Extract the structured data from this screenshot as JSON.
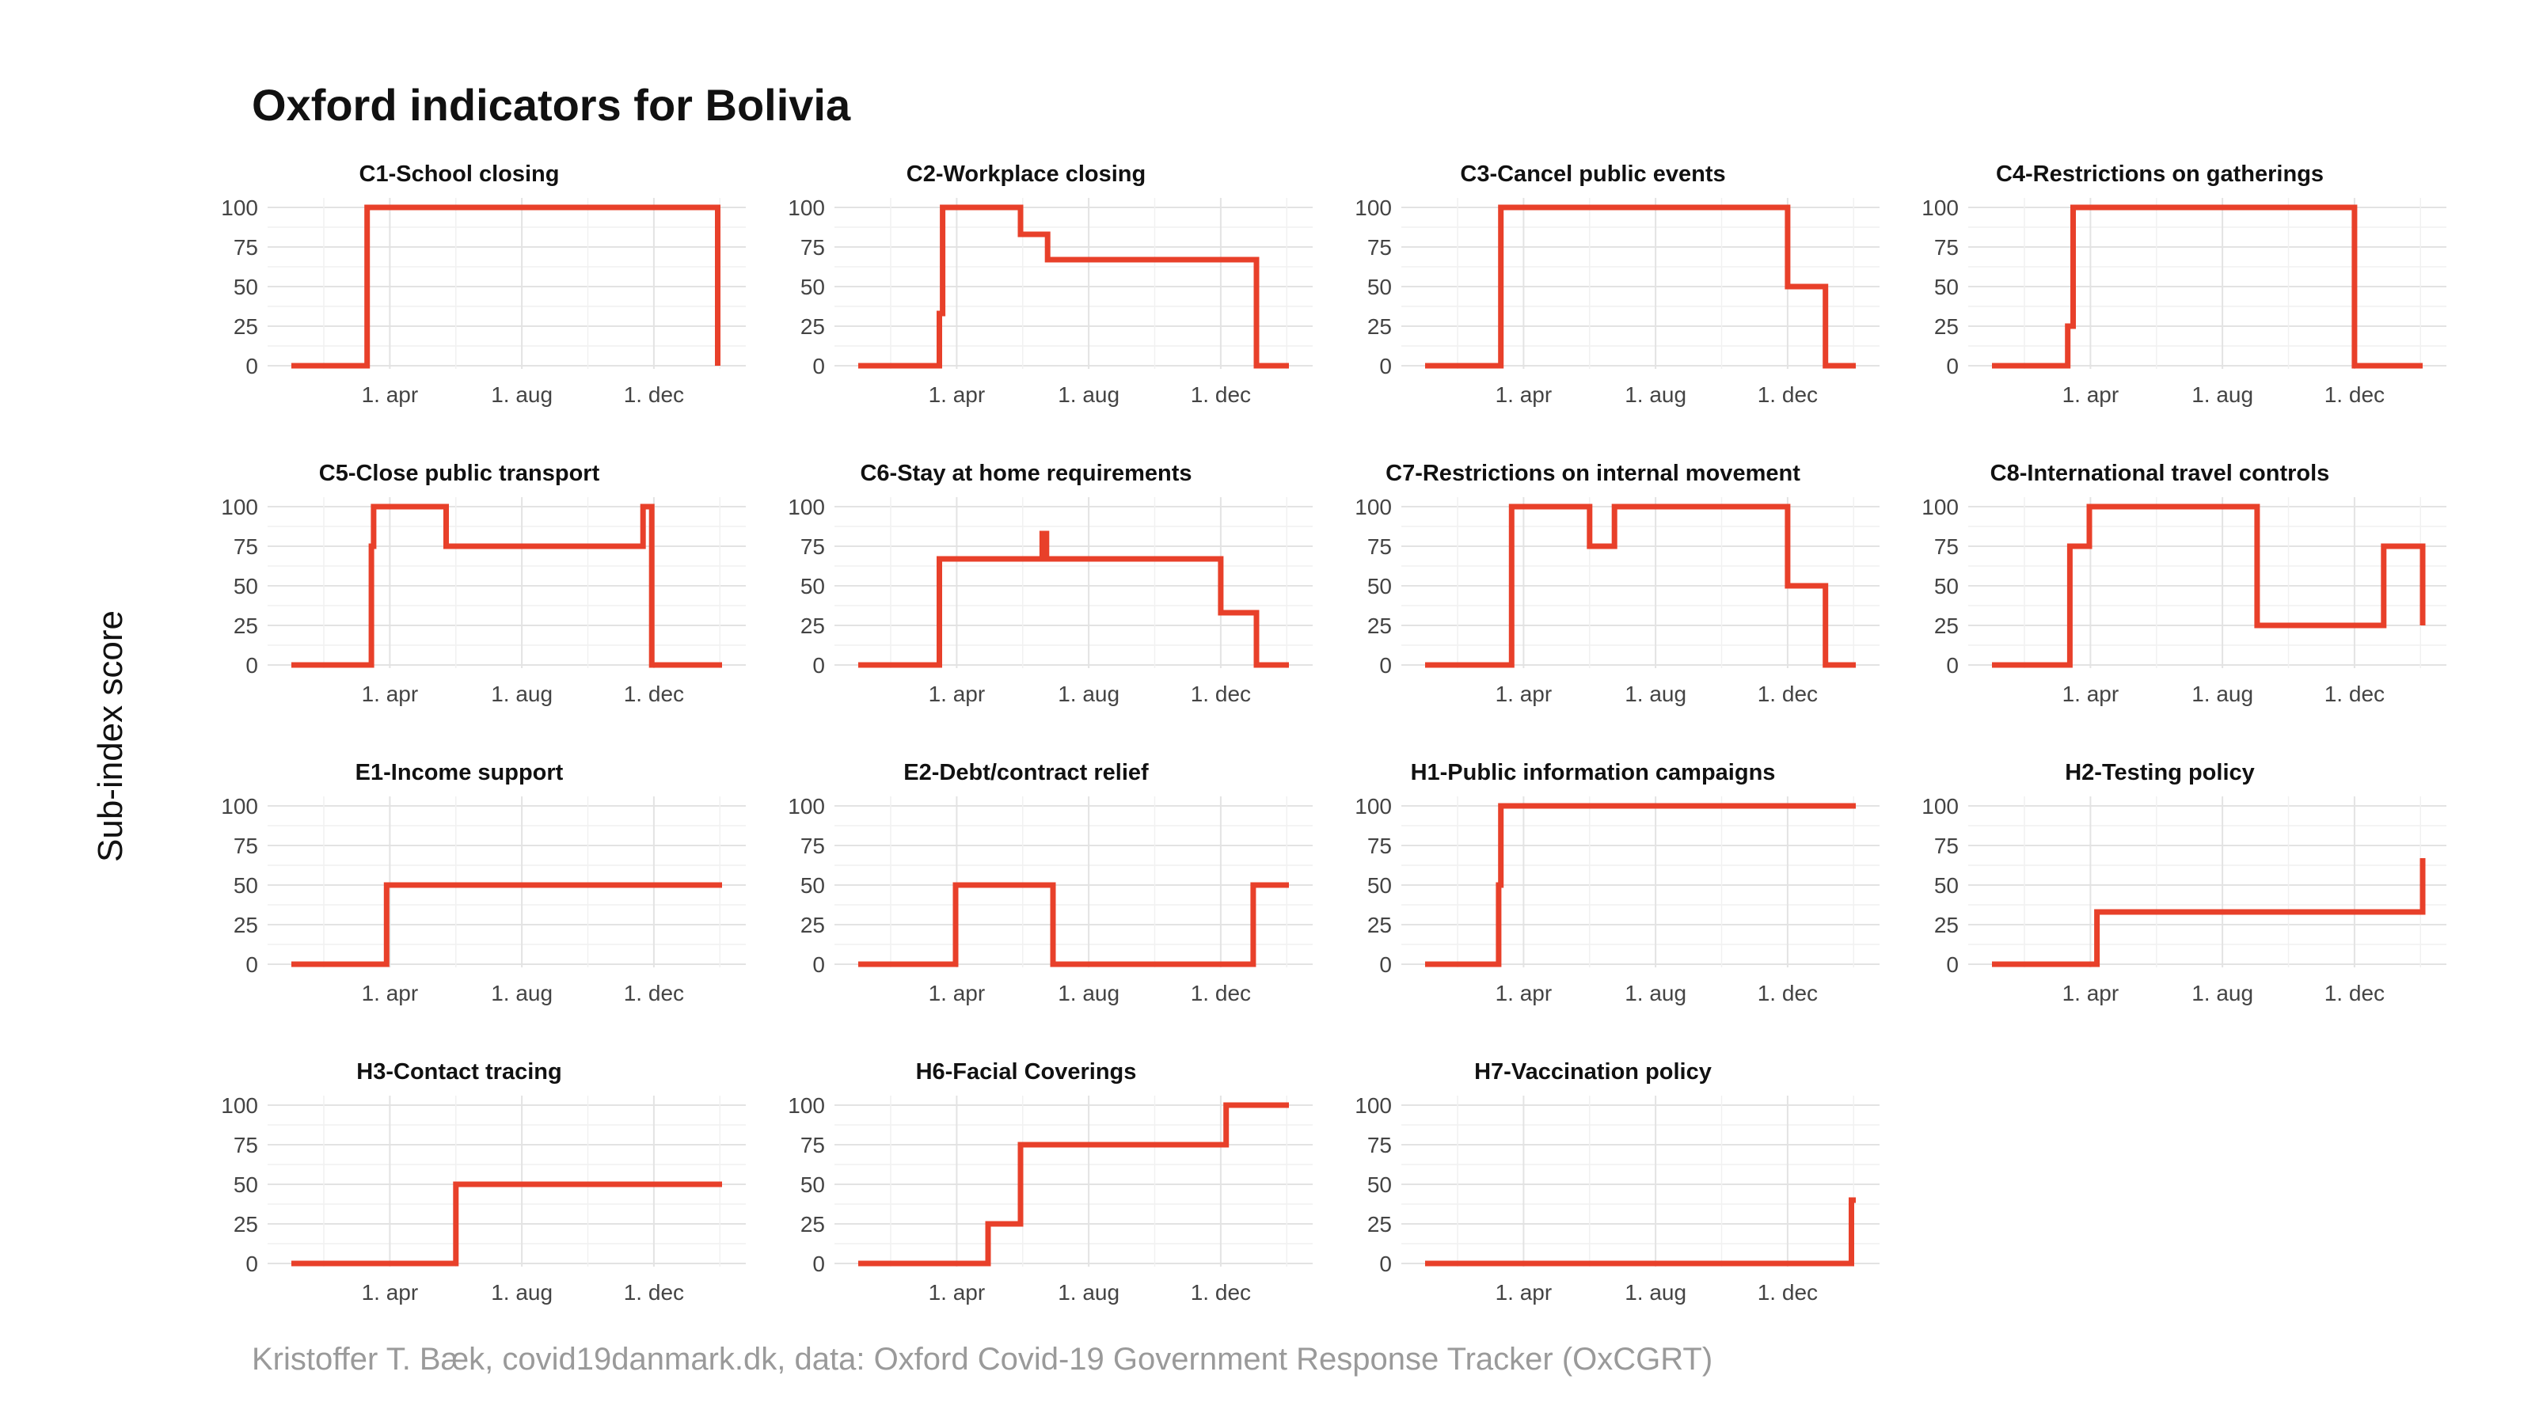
{
  "title": "Oxford indicators for Bolivia",
  "ylabel": "Sub-index score",
  "caption": "Kristoffer T. Bæk, covid19danmark.dk, data: Oxford Covid-19 Government Response Tracker (OxCGRT)",
  "line_color": "#e8402a",
  "chart_data": {
    "type": "line",
    "ylabel": "Sub-index score",
    "x_unit": "days since 2020-01-01",
    "x_tick_positions": [
      91,
      213,
      335
    ],
    "x_tick_labels": [
      "1. apr",
      "1. aug",
      "1. dec"
    ],
    "xlim": [
      0,
      398
    ],
    "ylim": [
      0,
      100
    ],
    "y_ticks": [
      0,
      25,
      50,
      75,
      100
    ],
    "grid": true,
    "panels": [
      {
        "name": "C1-School closing",
        "x": [
          0,
          70,
          70,
          394,
          394
        ],
        "y": [
          0,
          0,
          100,
          100,
          0
        ]
      },
      {
        "name": "C2-Workplace closing",
        "x": [
          0,
          75,
          75,
          78,
          78,
          150,
          150,
          175,
          175,
          368,
          368,
          398
        ],
        "y": [
          0,
          0,
          33,
          33,
          100,
          100,
          83,
          83,
          67,
          67,
          0,
          0
        ]
      },
      {
        "name": "C3-Cancel public events",
        "x": [
          0,
          70,
          70,
          335,
          335,
          370,
          370,
          398
        ],
        "y": [
          0,
          0,
          100,
          100,
          50,
          50,
          0,
          0
        ]
      },
      {
        "name": "C4-Restrictions on gatherings",
        "x": [
          0,
          70,
          70,
          75,
          75,
          335,
          335,
          398
        ],
        "y": [
          0,
          0,
          25,
          25,
          100,
          100,
          0,
          0
        ]
      },
      {
        "name": "C5-Close public transport",
        "x": [
          0,
          74,
          74,
          76,
          76,
          143,
          143,
          325,
          325,
          333,
          333,
          398
        ],
        "y": [
          0,
          0,
          75,
          75,
          100,
          100,
          75,
          75,
          100,
          100,
          0,
          0
        ]
      },
      {
        "name": "C6-Stay at home requirements",
        "x": [
          0,
          75,
          75,
          170,
          170,
          174,
          174,
          335,
          335,
          368,
          368,
          398
        ],
        "y": [
          0,
          0,
          67,
          67,
          83,
          83,
          67,
          67,
          33,
          33,
          0,
          0
        ]
      },
      {
        "name": "C7-Restrictions on internal movement",
        "x": [
          0,
          80,
          80,
          152,
          152,
          175,
          175,
          335,
          335,
          370,
          370,
          398
        ],
        "y": [
          0,
          0,
          100,
          100,
          75,
          75,
          100,
          100,
          50,
          50,
          0,
          0
        ]
      },
      {
        "name": "C8-International travel controls",
        "x": [
          0,
          72,
          72,
          90,
          90,
          245,
          245,
          362,
          362,
          398,
          398
        ],
        "y": [
          0,
          0,
          75,
          75,
          100,
          100,
          25,
          25,
          75,
          75,
          25
        ]
      },
      {
        "name": "E1-Income support",
        "x": [
          0,
          88,
          88,
          398
        ],
        "y": [
          0,
          0,
          50,
          50
        ]
      },
      {
        "name": "E2-Debt/contract relief",
        "x": [
          0,
          90,
          90,
          180,
          180,
          365,
          365,
          398
        ],
        "y": [
          0,
          0,
          50,
          50,
          0,
          0,
          50,
          50
        ]
      },
      {
        "name": "H1-Public information campaigns",
        "x": [
          0,
          68,
          68,
          70,
          70,
          398
        ],
        "y": [
          0,
          0,
          50,
          50,
          100,
          100
        ]
      },
      {
        "name": "H2-Testing policy",
        "x": [
          0,
          97,
          97,
          398,
          398
        ],
        "y": [
          0,
          0,
          33,
          33,
          67
        ]
      },
      {
        "name": "H3-Contact tracing",
        "x": [
          0,
          152,
          152,
          398
        ],
        "y": [
          0,
          0,
          50,
          50
        ]
      },
      {
        "name": "H6-Facial Coverings",
        "x": [
          0,
          120,
          120,
          150,
          150,
          340,
          340,
          398
        ],
        "y": [
          0,
          0,
          25,
          25,
          75,
          75,
          100,
          100
        ]
      },
      {
        "name": "H7-Vaccination policy",
        "x": [
          0,
          394,
          394,
          398
        ],
        "y": [
          0,
          0,
          40,
          40
        ]
      }
    ]
  }
}
